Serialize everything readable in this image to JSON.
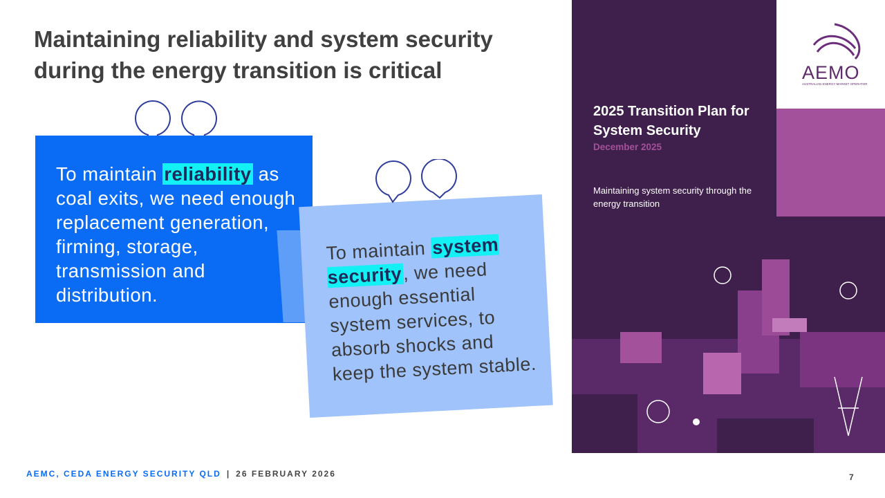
{
  "title": "Maintaining reliability and system security during the energy transition is critical",
  "quote1": {
    "pre": "To maintain ",
    "highlight": "reliability",
    "post": " as coal exits, we need enough replacement generation, firming, storage, transmission and distribution."
  },
  "quote2": {
    "pre": "To maintain ",
    "highlight": "system security",
    "post": ", we need enough essential system services, to absorb shocks and keep the system stable."
  },
  "cover": {
    "title": "2025 Transition Plan for System Security",
    "date": "December 2025",
    "subtitle": "Maintaining system security through the energy transition",
    "logo": "AEMO",
    "logo_sub": "AUSTRALIAN ENERGY MARKET OPERATOR"
  },
  "footer": {
    "left": "AEMC, CEDA ENERGY SECURITY QLD",
    "sep": "|",
    "date": "26 FEBRUARY 2026",
    "page": "7"
  },
  "colors": {
    "blue": "#0a6cf5",
    "light_blue": "#9fc3fa",
    "highlight": "#13f1f5",
    "purple": "#3f1f4b",
    "pink": "#a3519a"
  }
}
